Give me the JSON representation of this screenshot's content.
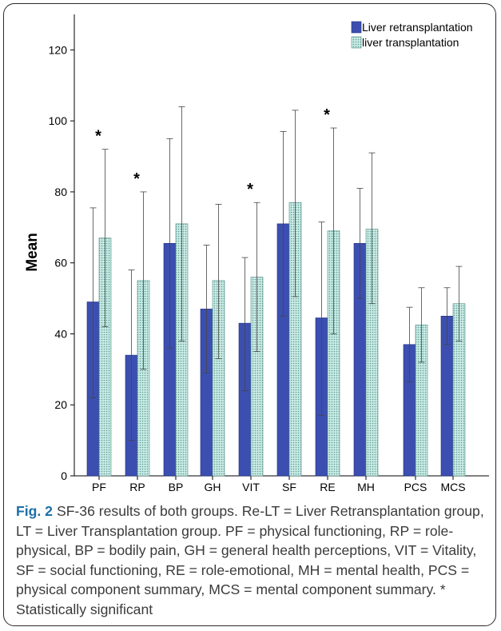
{
  "chart_data": {
    "type": "bar",
    "ylabel": "Mean",
    "xlabel": "",
    "ylim": [
      0,
      130
    ],
    "yticks": [
      0,
      20,
      40,
      60,
      80,
      100,
      120
    ],
    "categories": [
      "PF",
      "RP",
      "BP",
      "GH",
      "VIT",
      "SF",
      "RE",
      "MH",
      "PCS",
      "MCS"
    ],
    "series": [
      {
        "name": "Liver retransplantation",
        "color": "#3c4fb1",
        "pattern": "solid",
        "values": [
          49,
          34,
          65.5,
          47,
          43,
          71,
          44.5,
          65.5,
          37,
          45
        ],
        "error_low": [
          22,
          10,
          36,
          29,
          24,
          45,
          17,
          50,
          26.5,
          37
        ],
        "error_high": [
          75.5,
          58,
          95,
          65,
          61.5,
          97,
          71.5,
          81,
          47.5,
          53
        ]
      },
      {
        "name": "liver transplantation",
        "color": "#a8d8d0",
        "pattern": "dotted",
        "values": [
          67,
          55,
          71,
          55,
          56,
          77,
          69,
          69.5,
          42.5,
          48.5
        ],
        "error_low": [
          42,
          30,
          38,
          33,
          35,
          50.5,
          40,
          48.5,
          32,
          38
        ],
        "error_high": [
          92,
          80,
          104,
          76.5,
          77,
          103,
          98,
          91,
          53,
          59
        ]
      }
    ],
    "significance_markers": [
      {
        "category": "PF",
        "mark": "*"
      },
      {
        "category": "RP",
        "mark": "*"
      },
      {
        "category": "VIT",
        "mark": "*"
      },
      {
        "category": "RE",
        "mark": "*"
      }
    ],
    "legend_position": "top-right",
    "grid": false
  },
  "caption": {
    "label": "Fig. 2",
    "text": "SF-36 results of both groups. Re-LT = Liver Retransplantation group, LT = Liver Transplantation group. PF = physical functioning, RP = role-physical, BP = bodily pain, GH = general health perceptions, VIT = Vitality, SF = social functioning, RE = role-emotional, MH = mental health, PCS = physical component summary, MCS = mental component summary. * Statistically significant"
  }
}
